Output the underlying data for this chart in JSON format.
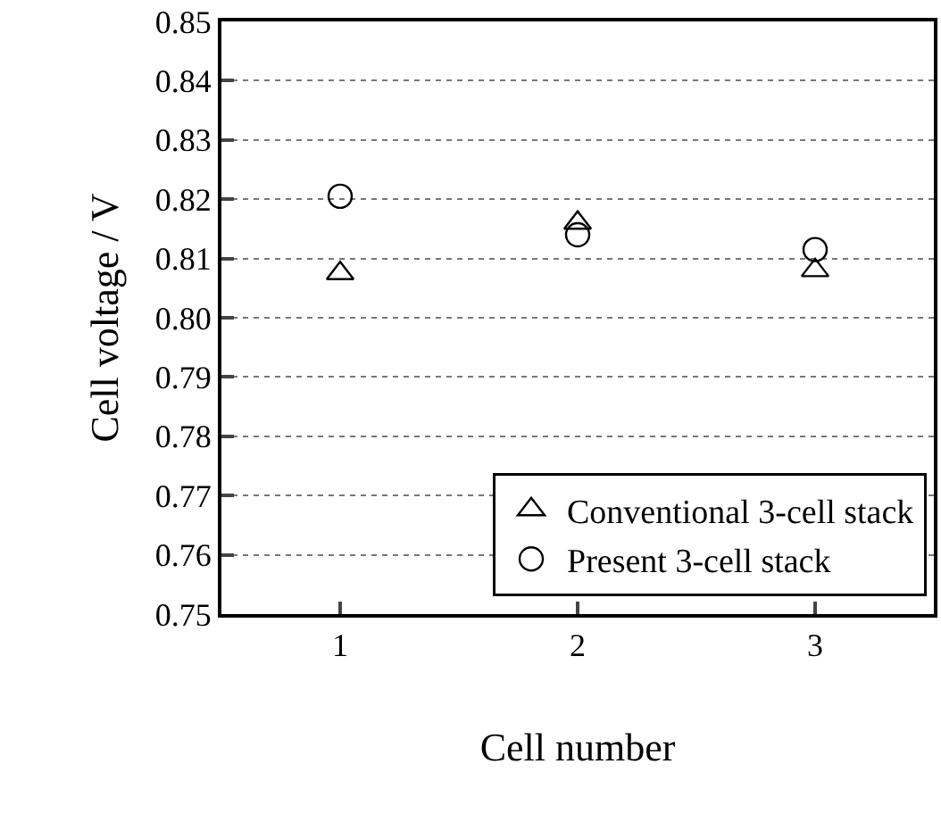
{
  "chart_data": {
    "type": "scatter",
    "xlabel": "Cell number",
    "ylabel": "Cell voltage / V",
    "x": [
      1,
      2,
      3
    ],
    "xlim": [
      0.5,
      3.5
    ],
    "xticks": [
      1,
      2,
      3
    ],
    "ylim": [
      0.75,
      0.85
    ],
    "yticks": [
      0.75,
      0.76,
      0.77,
      0.78,
      0.79,
      {
        "value": 0.8,
        "label": "0.80"
      },
      0.81,
      0.82,
      0.83,
      0.84,
      0.85
    ],
    "grid": "y",
    "legend": "bottom right",
    "series": [
      {
        "name": "Conventional 3-cell stack",
        "color": "#000000",
        "marker": "triangle",
        "values": [
          0.8075,
          0.816,
          0.808
        ]
      },
      {
        "name": "Present 3-cell stack",
        "color": "#000000",
        "marker": "circle",
        "values": [
          0.8205,
          0.814,
          0.8115
        ]
      }
    ]
  }
}
